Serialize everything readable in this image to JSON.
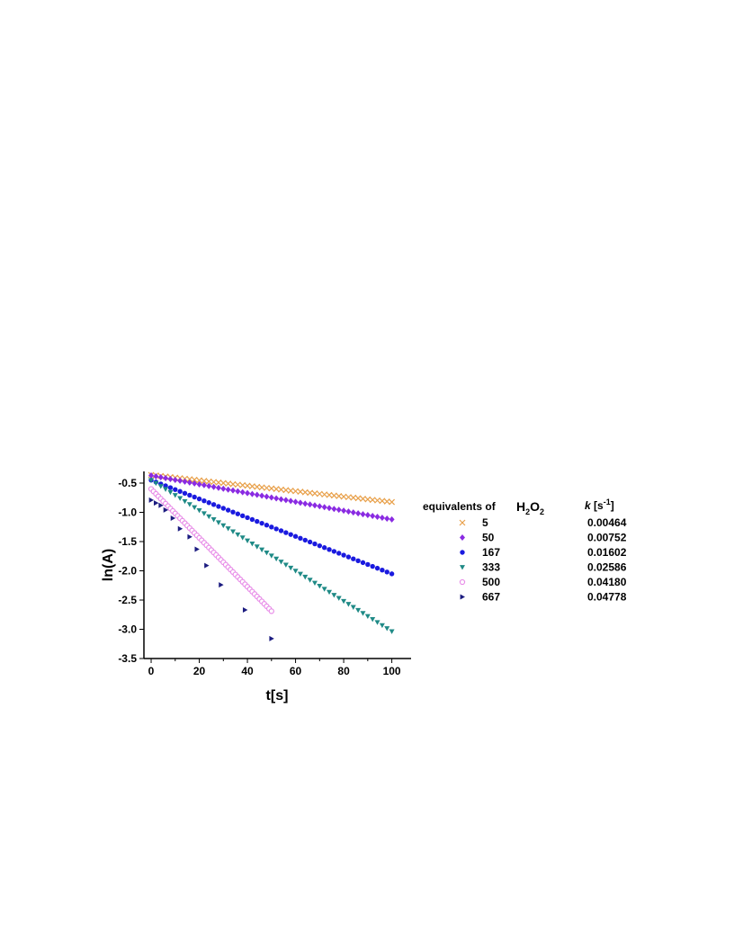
{
  "chart_data": {
    "type": "scatter",
    "xlabel": "t[s]",
    "ylabel": "ln(A)",
    "xlim": [
      -3,
      108
    ],
    "ylim": [
      -3.5,
      -0.3
    ],
    "x_ticks": [
      "0",
      "20",
      "40",
      "60",
      "80",
      "100"
    ],
    "y_ticks": [
      "-0.5",
      "-1.0",
      "-1.5",
      "-2.0",
      "-2.5",
      "-3.0",
      "-3.5"
    ],
    "grid": false,
    "legend_position": "right",
    "legend_header_equivalents": "equivalents of",
    "legend_header_h2o2": {
      "h": "H",
      "sub1": "2",
      "o": "O",
      "sub2": "2"
    },
    "legend_header_k": {
      "k": "k",
      "unit_open": " [s",
      "exp": "-1",
      "unit_close": "]"
    },
    "series": [
      {
        "name": "5",
        "k": "0.00464",
        "color": "#e8a04a",
        "marker": "x",
        "y0": -0.36,
        "slope": -0.00464,
        "x_end": 100,
        "step": 2
      },
      {
        "name": "50",
        "k": "0.00752",
        "color": "#8a2be2",
        "marker": "diamond",
        "y0": -0.37,
        "slope": -0.00752,
        "x_end": 100,
        "step": 2
      },
      {
        "name": "167",
        "k": "0.01602",
        "color": "#1a1adf",
        "marker": "circle",
        "y0": -0.45,
        "slope": -0.01602,
        "x_end": 100,
        "step": 2
      },
      {
        "name": "333",
        "k": "0.02586",
        "color": "#1f8a86",
        "marker": "tri-down",
        "y0": -0.45,
        "slope": -0.02586,
        "x_end": 100,
        "step": 2
      },
      {
        "name": "500",
        "k": "0.04180",
        "color": "#e88ee8",
        "marker": "circle-open",
        "y0": -0.6,
        "slope": -0.0418,
        "x_end": 50,
        "step": 1
      },
      {
        "name": "667",
        "k": "0.04778",
        "color": "#1c1c80",
        "marker": "tri-right",
        "points": [
          [
            0,
            -0.79
          ],
          [
            2,
            -0.84
          ],
          [
            4,
            -0.88
          ],
          [
            6,
            -0.96
          ],
          [
            9,
            -1.1
          ],
          [
            12,
            -1.28
          ],
          [
            16,
            -1.42
          ],
          [
            19,
            -1.63
          ],
          [
            23,
            -1.91
          ],
          [
            29,
            -2.24
          ],
          [
            39,
            -2.67
          ],
          [
            50,
            -3.16
          ]
        ]
      }
    ]
  }
}
